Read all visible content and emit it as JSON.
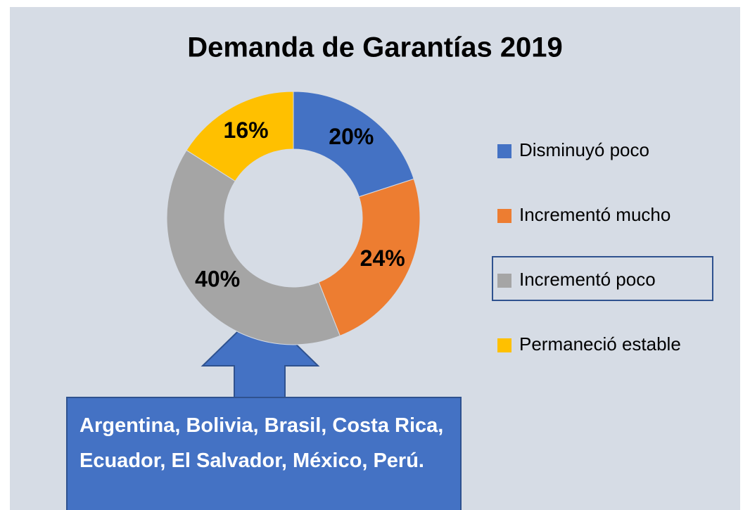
{
  "chart_data": {
    "type": "pie",
    "title": "Demanda de Garantías 2019",
    "categories": [
      "Disminuyó poco",
      "Incrementó mucho",
      "Incrementó poco",
      "Permaneció estable"
    ],
    "values": [
      20,
      24,
      40,
      16
    ],
    "value_labels": [
      "20%",
      "24%",
      "40%",
      "16%"
    ],
    "colors": [
      "#4472c4",
      "#ed7d31",
      "#a5a5a5",
      "#ffc000"
    ],
    "annotation": "Argentina, Bolivia, Brasil, Costa Rica, Ecuador, El Salvador, México, Perú."
  }
}
